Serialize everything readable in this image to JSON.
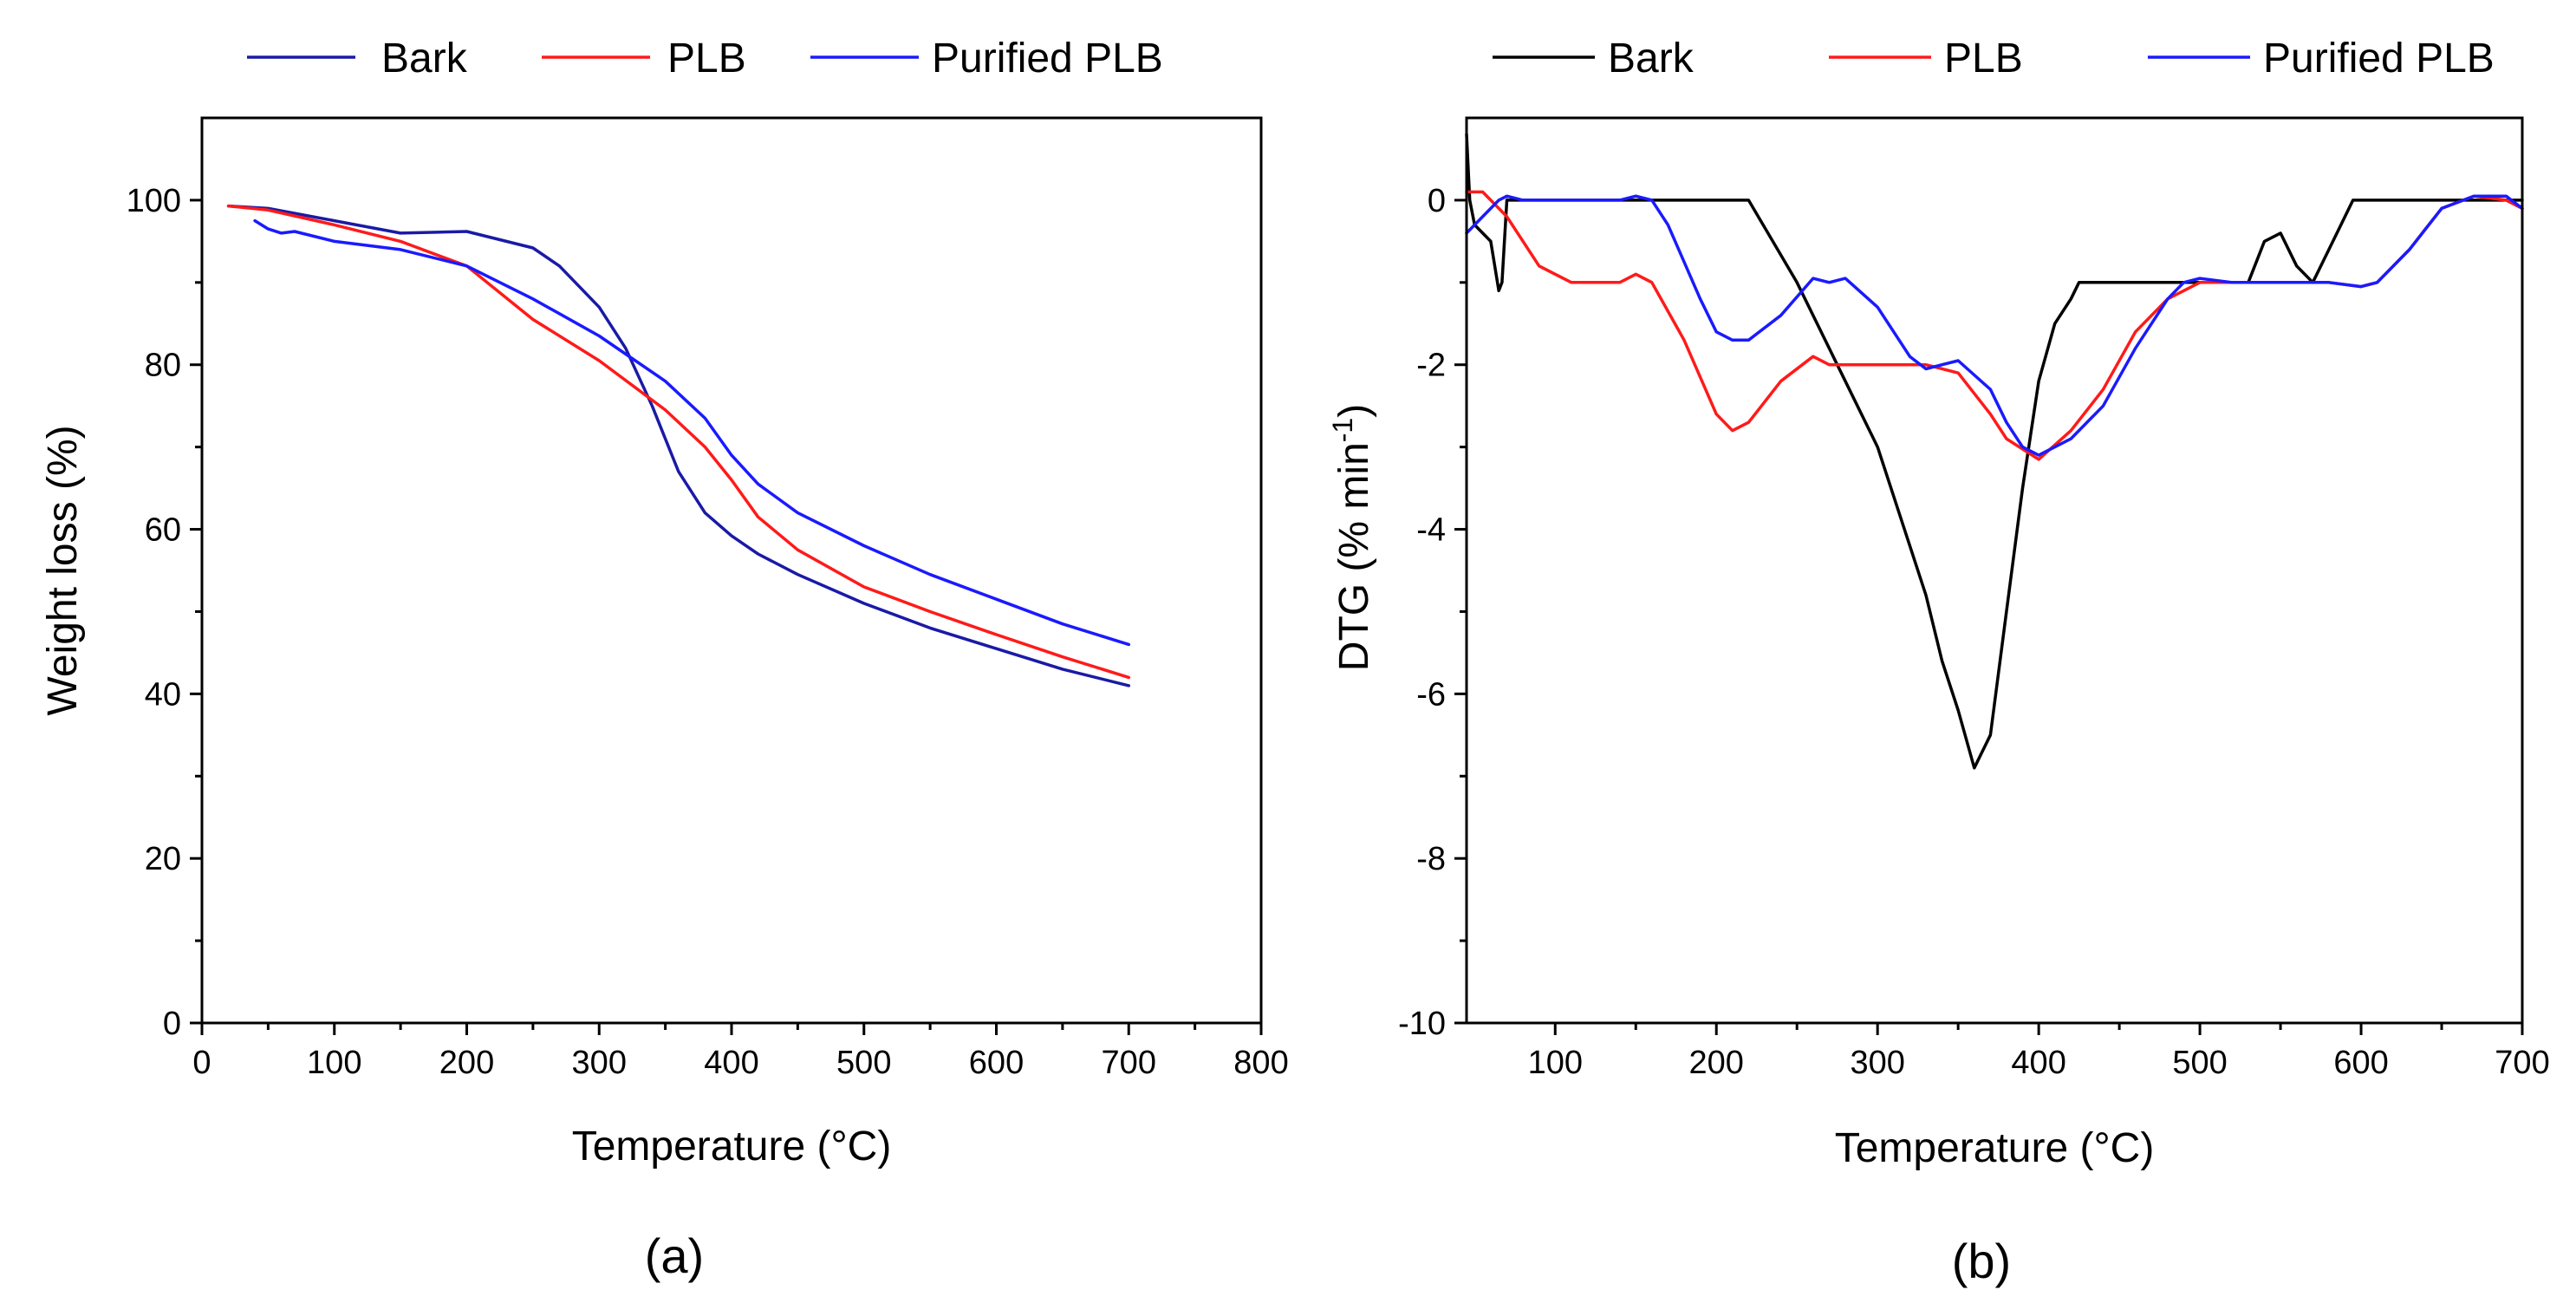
{
  "chart_data": [
    {
      "id": "a",
      "type": "line",
      "panel_label": "(a)",
      "title": "",
      "xlabel": "Temperature (°C)",
      "ylabel": "Weight loss (%)",
      "xlim": [
        0,
        800
      ],
      "ylim": [
        0,
        110
      ],
      "xticks": [
        0,
        100,
        200,
        300,
        400,
        500,
        600,
        700,
        800
      ],
      "yticks": [
        0,
        20,
        40,
        60,
        80,
        100
      ],
      "grid": false,
      "legend_position": "top",
      "series": [
        {
          "name": "Bark",
          "color": "#1a1aa6",
          "x": [
            20,
            50,
            100,
            150,
            200,
            250,
            270,
            300,
            320,
            340,
            350,
            360,
            380,
            400,
            420,
            450,
            500,
            550,
            600,
            650,
            700
          ],
          "y": [
            99.3,
            99,
            97.5,
            96,
            96.2,
            94.2,
            92,
            87,
            82,
            75,
            71,
            67,
            62,
            59.2,
            57,
            54.5,
            51,
            48,
            45.5,
            43,
            41
          ]
        },
        {
          "name": "PLB",
          "color": "#ff1a1a",
          "x": [
            20,
            50,
            100,
            150,
            200,
            250,
            300,
            350,
            380,
            400,
            420,
            450,
            500,
            550,
            600,
            650,
            700
          ],
          "y": [
            99.3,
            98.8,
            97,
            95,
            92,
            85.5,
            80.5,
            74.5,
            70,
            66,
            61.5,
            57.5,
            53,
            50,
            47.2,
            44.5,
            42
          ]
        },
        {
          "name": "Purified PLB",
          "color": "#1a1aff",
          "x": [
            40,
            50,
            60,
            70,
            100,
            150,
            200,
            250,
            300,
            350,
            380,
            400,
            420,
            450,
            500,
            550,
            600,
            650,
            700
          ],
          "y": [
            97.5,
            96.5,
            96,
            96.2,
            95,
            94,
            92,
            88,
            83.5,
            78,
            73.5,
            69,
            65.5,
            62,
            58,
            54.5,
            51.5,
            48.5,
            46
          ]
        }
      ]
    },
    {
      "id": "b",
      "type": "line",
      "panel_label": "(b)",
      "title": "",
      "xlabel": "Temperature (°C)",
      "ylabel_main": "DTG (% min",
      "ylabel_sup": "-1",
      "ylabel_end": ")",
      "xlim": [
        45,
        700
      ],
      "ylim": [
        -10,
        1
      ],
      "xticks": [
        100,
        200,
        300,
        400,
        500,
        600,
        700
      ],
      "yticks": [
        -10,
        -8,
        -6,
        -4,
        -2,
        0
      ],
      "grid": false,
      "legend_position": "top",
      "series": [
        {
          "name": "Bark",
          "color": "#000000",
          "x": [
            45,
            47,
            50,
            55,
            60,
            65,
            67,
            70,
            72,
            80,
            100,
            150,
            200,
            220,
            250,
            280,
            300,
            320,
            330,
            340,
            350,
            360,
            370,
            380,
            390,
            400,
            410,
            420,
            425,
            430,
            450,
            500,
            530,
            540,
            550,
            560,
            570,
            580,
            595,
            600,
            650,
            700
          ],
          "y": [
            0.8,
            0,
            -0.3,
            -0.4,
            -0.5,
            -1.1,
            -1.0,
            0.0,
            0.0,
            0,
            0,
            0,
            0,
            0,
            -1.0,
            -2.2,
            -3.0,
            -4.2,
            -4.8,
            -5.6,
            -6.2,
            -6.9,
            -6.5,
            -5.0,
            -3.5,
            -2.2,
            -1.5,
            -1.2,
            -1.0,
            -1.0,
            -1.0,
            -1.0,
            -1.0,
            -0.5,
            -0.4,
            -0.8,
            -1.0,
            -0.6,
            0,
            0,
            0,
            0
          ]
        },
        {
          "name": "PLB",
          "color": "#ff1a1a",
          "x": [
            45,
            55,
            70,
            90,
            110,
            120,
            140,
            150,
            160,
            180,
            200,
            210,
            220,
            240,
            260,
            270,
            300,
            320,
            330,
            350,
            370,
            380,
            400,
            420,
            440,
            460,
            480,
            500,
            520,
            550,
            580,
            600,
            610,
            630,
            650,
            670,
            690,
            700
          ],
          "y": [
            0.1,
            0.1,
            -0.2,
            -0.8,
            -1.0,
            -1.0,
            -1.0,
            -0.9,
            -1.0,
            -1.7,
            -2.6,
            -2.8,
            -2.7,
            -2.2,
            -1.9,
            -2.0,
            -2.0,
            -2.0,
            -2.0,
            -2.1,
            -2.6,
            -2.9,
            -3.15,
            -2.8,
            -2.3,
            -1.6,
            -1.2,
            -1.0,
            -1.0,
            -1.0,
            -1.0,
            -1.05,
            -1.0,
            -0.6,
            -0.1,
            0.05,
            0.0,
            -0.1
          ]
        },
        {
          "name": "Purified PLB",
          "color": "#1a1aff",
          "x": [
            45,
            55,
            65,
            70,
            80,
            100,
            140,
            150,
            160,
            170,
            190,
            200,
            210,
            220,
            240,
            260,
            270,
            280,
            300,
            320,
            330,
            340,
            350,
            370,
            380,
            390,
            400,
            420,
            440,
            460,
            480,
            490,
            500,
            520,
            550,
            580,
            600,
            610,
            630,
            650,
            670,
            690,
            700
          ],
          "y": [
            -0.4,
            -0.2,
            0.0,
            0.05,
            0.0,
            0.0,
            0.0,
            0.05,
            0.0,
            -0.3,
            -1.2,
            -1.6,
            -1.7,
            -1.7,
            -1.4,
            -0.95,
            -1.0,
            -0.95,
            -1.3,
            -1.9,
            -2.05,
            -2.0,
            -1.95,
            -2.3,
            -2.7,
            -3.0,
            -3.1,
            -2.9,
            -2.5,
            -1.8,
            -1.2,
            -1.0,
            -0.95,
            -1.0,
            -1.0,
            -1.0,
            -1.05,
            -1.0,
            -0.6,
            -0.1,
            0.05,
            0.05,
            -0.1
          ]
        }
      ]
    }
  ]
}
